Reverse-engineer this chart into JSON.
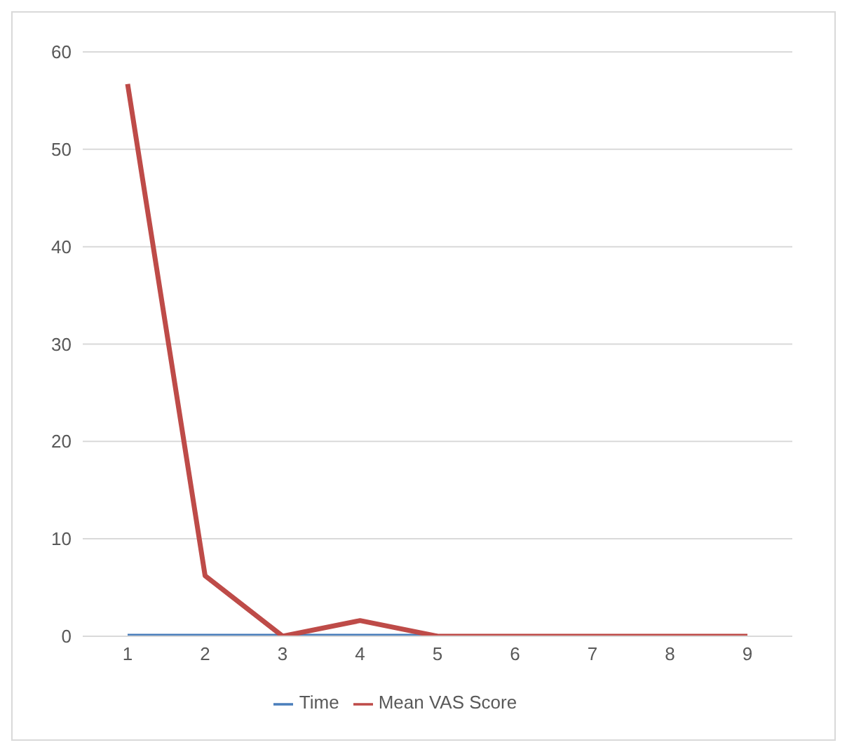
{
  "chart_data": {
    "type": "line",
    "categories": [
      "1",
      "2",
      "3",
      "4",
      "5",
      "6",
      "7",
      "8",
      "9"
    ],
    "series": [
      {
        "name": "Time",
        "color": "#4a7ebb",
        "values": [
          0,
          0,
          0,
          0,
          0,
          null,
          null,
          null,
          null
        ]
      },
      {
        "name": "Mean VAS Score",
        "color": "#be4b48",
        "values": [
          56.7,
          6.2,
          0,
          1.6,
          0,
          0,
          0,
          0,
          0
        ]
      }
    ],
    "ylim": [
      0,
      60
    ],
    "yticks": [
      0,
      10,
      20,
      30,
      40,
      50,
      60
    ],
    "grid": "y",
    "legend": "bottom",
    "marker": "none"
  }
}
